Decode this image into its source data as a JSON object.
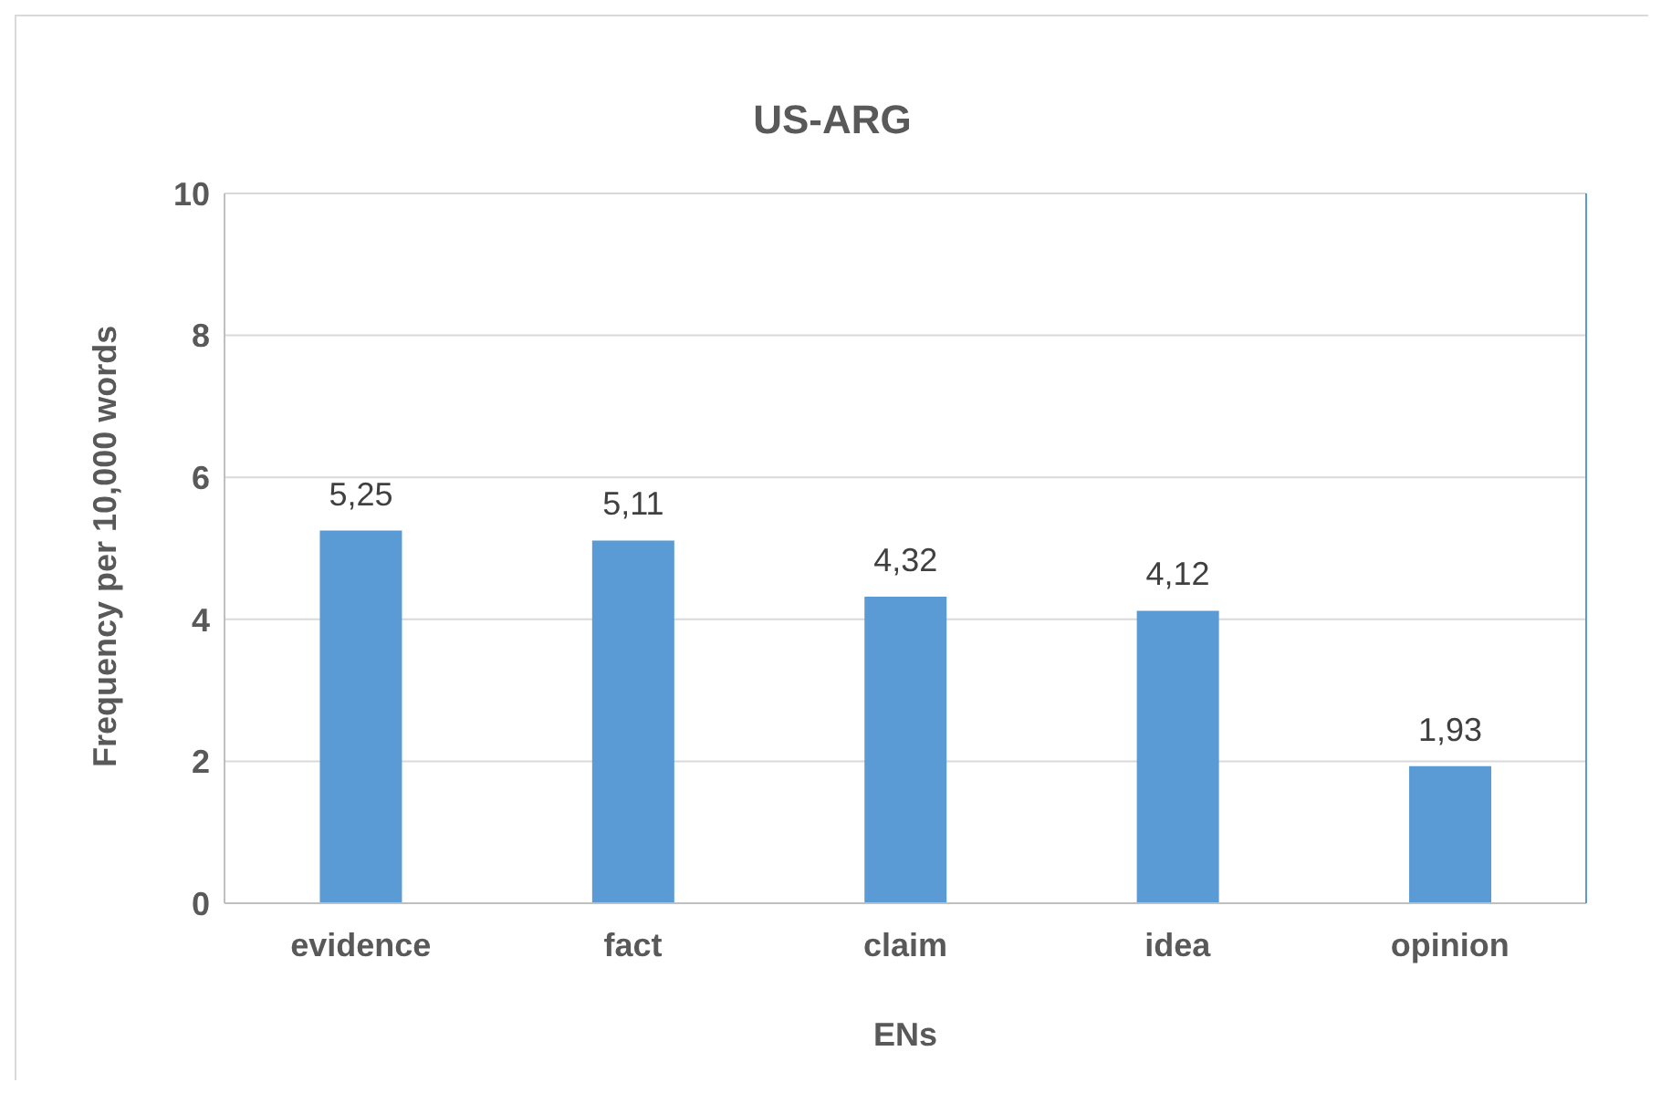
{
  "chart_data": {
    "type": "bar",
    "title": "US-ARG",
    "xlabel": "ENs",
    "ylabel": "Frequency per 10,000 words",
    "categories": [
      "evidence",
      "fact",
      "claim",
      "idea",
      "opinion"
    ],
    "values": [
      5.25,
      5.11,
      4.32,
      4.12,
      1.93
    ],
    "value_labels": [
      "5,25",
      "5,11",
      "4,32",
      "4,12",
      "1,93"
    ],
    "color": "#5b9bd5",
    "ylim": [
      0,
      10
    ],
    "yticks": [
      0,
      2,
      4,
      6,
      8,
      10
    ],
    "grid": "y",
    "legend": false
  }
}
